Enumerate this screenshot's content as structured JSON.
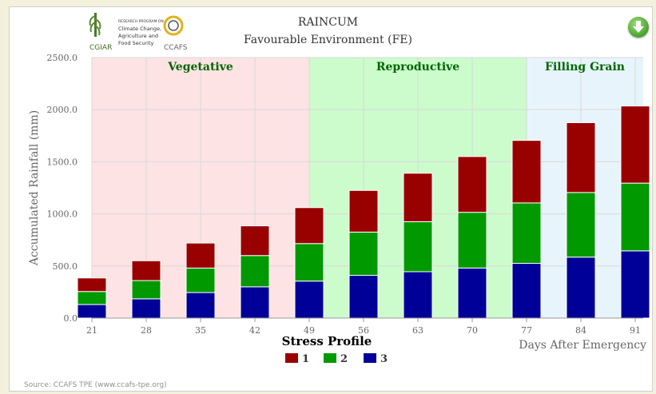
{
  "header": {
    "title": "RAINCUM",
    "subtitle": "Favourable Environment (FE)",
    "logo_cgiar": "CGIAR",
    "logo_ccafs": "CCAFS",
    "logo_program_text": [
      "RESEARCH PROGRAM ON",
      "Climate Change,",
      "Agriculture and",
      "Food Security"
    ]
  },
  "download_icon": "download-arrow-icon",
  "source": "Source: CCAFS TPE (www.ccafs-tpe.org)",
  "colors": {
    "series1": "#990000",
    "series2": "#009900",
    "series3": "#000099",
    "vegetative_band": "#fde3e3",
    "reproductive_band": "#ccfccc",
    "filling_band": "#e8f4fb",
    "phase_label": "#006600"
  },
  "chart_data": {
    "type": "bar",
    "stacked": true,
    "categories": [
      "21",
      "28",
      "35",
      "42",
      "49",
      "56",
      "63",
      "70",
      "77",
      "84",
      "91"
    ],
    "series": [
      {
        "name": "3",
        "values": [
          130,
          185,
          245,
          300,
          355,
          410,
          445,
          480,
          525,
          585,
          645
        ]
      },
      {
        "name": "2",
        "values": [
          125,
          175,
          235,
          300,
          360,
          415,
          480,
          535,
          580,
          620,
          650
        ]
      },
      {
        "name": "1",
        "values": [
          130,
          190,
          240,
          285,
          345,
          400,
          465,
          535,
          600,
          670,
          740
        ]
      }
    ],
    "ylabel": "Accumulated Rainfall (mm)",
    "xlabel": "Days After Emergency",
    "ylim": [
      0,
      2500
    ],
    "y_ticks": [
      "0.0",
      "500.0",
      "1000.0",
      "1500.0",
      "2000.0",
      "2500.0"
    ],
    "grid": true,
    "phases": [
      {
        "label": "Vegetative",
        "from": "21",
        "to": "49"
      },
      {
        "label": "Reproductive",
        "from": "49",
        "to": "77"
      },
      {
        "label": "Filling Grain",
        "from": "77",
        "to": "91"
      }
    ],
    "legend": {
      "title": "Stress Profile",
      "position": "bottom-center",
      "items": [
        "1",
        "2",
        "3"
      ]
    }
  }
}
